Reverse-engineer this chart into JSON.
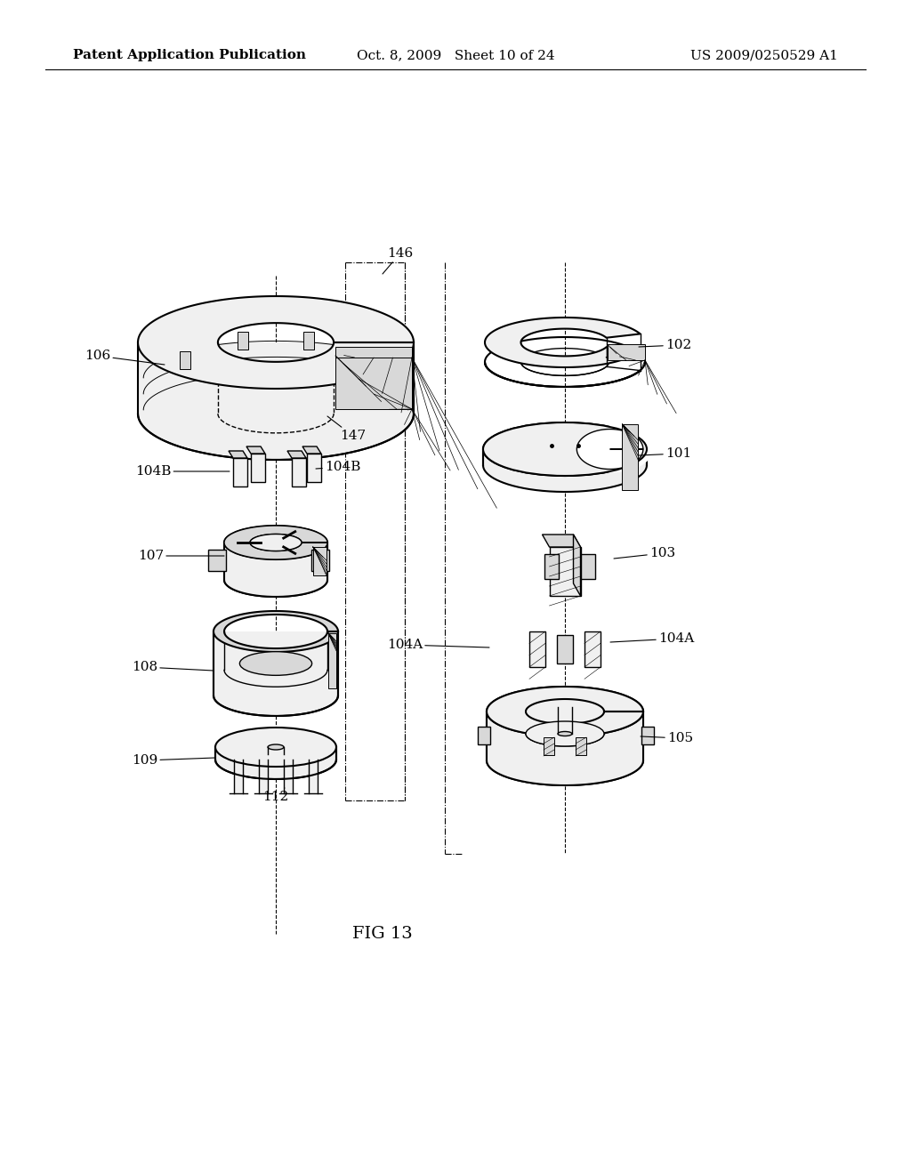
{
  "background_color": "#ffffff",
  "header_left": "Patent Application Publication",
  "header_center": "Oct. 8, 2009   Sheet 10 of 24",
  "header_right": "US 2009/0250529 A1",
  "figure_label": "FIG 13",
  "header_fontsize": 11,
  "figure_label_fontsize": 14,
  "label_fontsize": 11,
  "line_color": "#000000",
  "fill_light": "#f0f0f0",
  "fill_mid": "#d8d8d8",
  "fill_dark": "#aaaaaa",
  "fill_hatch": "#888888"
}
